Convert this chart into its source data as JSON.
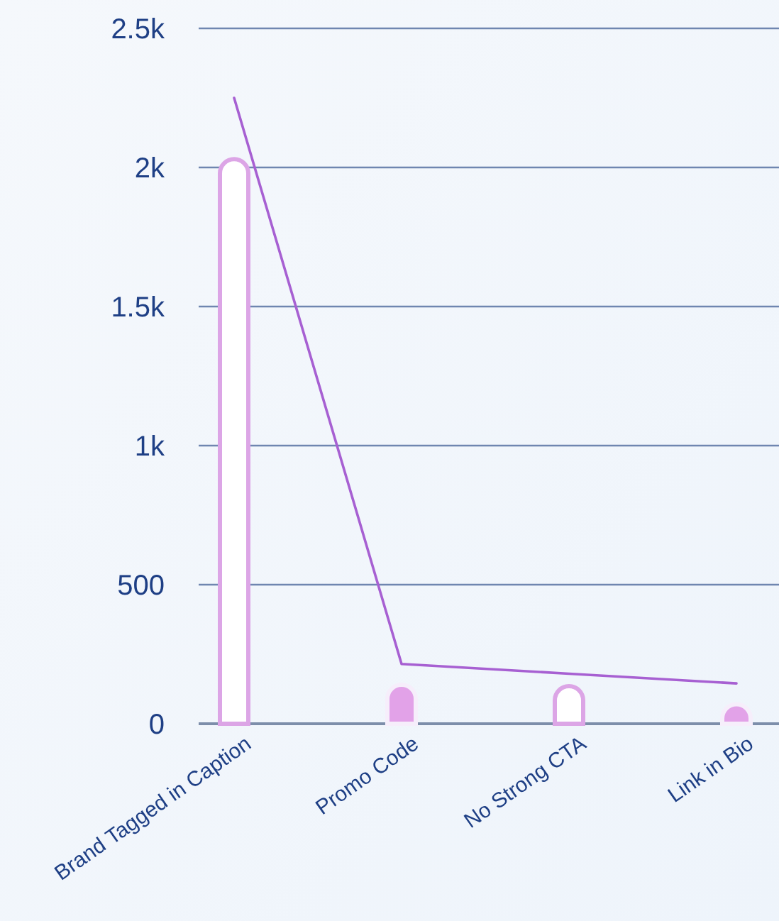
{
  "chart_data": {
    "type": "bar",
    "categories": [
      "Brand Tagged in Caption",
      "Promo Code",
      "No Strong CTA",
      "Link in Bio"
    ],
    "series": [
      {
        "values": [
          2030,
          140,
          135,
          70
        ],
        "colors": [
          "#ffffff",
          "#e2a2e8",
          "#ffffff",
          "#e2a2e8"
        ]
      },
      {
        "type": "line",
        "values": [
          2250,
          215,
          180,
          145
        ],
        "color": "#a760d2"
      }
    ],
    "ylim": [
      0,
      2500
    ],
    "yticks": [
      0,
      500,
      {
        "value": 1000,
        "label": "1k"
      },
      {
        "value": 1500,
        "label": "1.5k"
      },
      {
        "value": 2000,
        "label": "2k"
      },
      {
        "value": 2500,
        "label": "2.5k"
      }
    ],
    "grid": "y"
  }
}
